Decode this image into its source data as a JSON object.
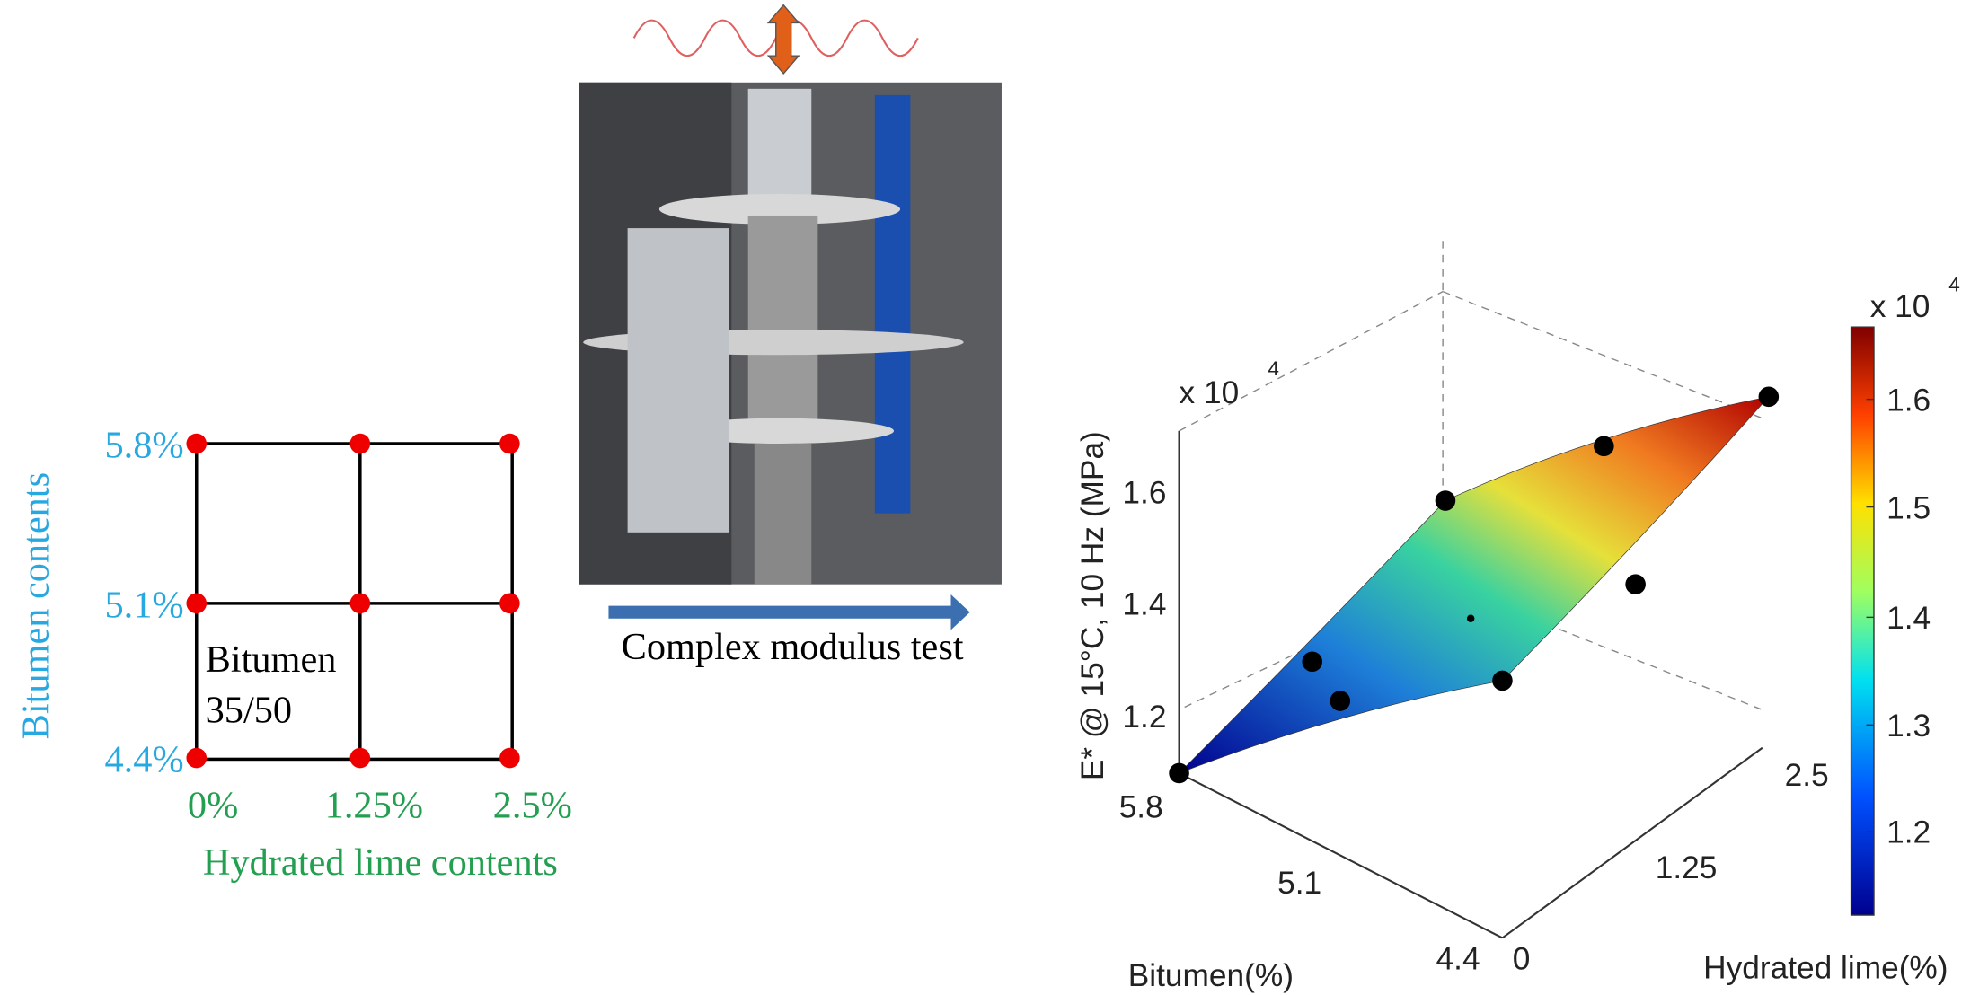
{
  "design_grid": {
    "y_title": "Bitumen contents",
    "y_labels": [
      "5.8%",
      "5.1%",
      "4.4%"
    ],
    "x_labels": [
      "0%",
      "1.25%",
      "2.5%"
    ],
    "x_title": "Hydrated lime contents",
    "cell_label": [
      "Bitumen",
      "35/50"
    ]
  },
  "test": {
    "caption": "Complex modulus test"
  },
  "surface_plot": {
    "z_label": "E* @ 15°C, 10 Hz (MPa)",
    "z_multiplier": {
      "base": "x 10",
      "exponent": "4"
    },
    "z_ticks": [
      "1.2",
      "1.4",
      "1.6"
    ],
    "bitumen_ticks": [
      "5.8",
      "5.1",
      "4.4"
    ],
    "bitumen_label": "Bitumen(%)",
    "lime_ticks": [
      "0",
      "1.25",
      "2.5"
    ],
    "lime_label": "Hydrated lime(%)",
    "colorbar_multiplier": {
      "base": "x 10",
      "exponent": "4"
    },
    "colorbar_ticks": [
      "1.2",
      "1.3",
      "1.4",
      "1.5",
      "1.6"
    ]
  }
}
